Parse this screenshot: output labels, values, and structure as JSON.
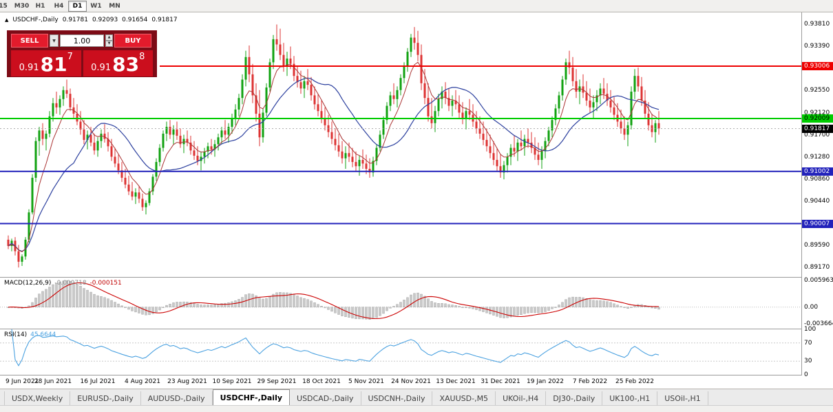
{
  "toolbar": {
    "timeframes": [
      {
        "label": "15",
        "active": false
      },
      {
        "label": "M30",
        "active": false
      },
      {
        "label": "H1",
        "active": false
      },
      {
        "label": "H4",
        "active": false
      },
      {
        "label": "D1",
        "active": true
      },
      {
        "label": "W1",
        "active": false
      },
      {
        "label": "MN",
        "active": false
      }
    ]
  },
  "chart": {
    "symbol_header": {
      "symbol": "USDCHF-,Daily",
      "open": "0.91781",
      "high": "0.92093",
      "low": "0.91654",
      "close": "0.91817"
    },
    "price_axis": {
      "plain": [
        "0.93810",
        "0.93390",
        "0.92550",
        "0.92120",
        "0.91700",
        "0.91280",
        "0.90860",
        "0.90440",
        "0.89590",
        "0.89170"
      ],
      "tags": [
        {
          "label": "0.93006",
          "bg": "#ee0000",
          "fg": "#ffffff"
        },
        {
          "label": "0.92009",
          "bg": "#00cc00",
          "fg": "#000000"
        },
        {
          "label": "0.91817",
          "bg": "#000000",
          "fg": "#ffffff"
        },
        {
          "label": "0.91002",
          "bg": "#2222bb",
          "fg": "#ffffff"
        },
        {
          "label": "0.90007",
          "bg": "#2222bb",
          "fg": "#ffffff"
        }
      ]
    },
    "hlines": [
      {
        "price": 0.93006,
        "color": "#ee0000",
        "width": 2,
        "x_start": 232
      },
      {
        "price": 0.92009,
        "color": "#00cc00",
        "width": 2,
        "x_start": 0
      },
      {
        "price": 0.91002,
        "color": "#2222bb",
        "width": 2,
        "x_start": 0
      },
      {
        "price": 0.90007,
        "color": "#2222bb",
        "width": 2,
        "x_start": 0
      },
      {
        "price": 0.91817,
        "color": "#aaaaaa",
        "width": 1,
        "x_start": 0,
        "dash": "2,3"
      }
    ]
  },
  "trade": {
    "sell_label": "SELL",
    "buy_label": "BUY",
    "volume": "1.00",
    "bid": {
      "small": "0.91",
      "big": "81",
      "sup": "7"
    },
    "ask": {
      "small": "0.91",
      "big": "83",
      "sup": "8"
    }
  },
  "indicators": {
    "macd": {
      "label": "MACD(12,26,9)",
      "value_main": "-0.000718",
      "value_signal": "-0.000151",
      "axis": [
        "0.005963",
        "0.00",
        "-0.003664"
      ],
      "params": {
        "fast": 12,
        "slow": 26,
        "signal": 9
      }
    },
    "rsi": {
      "label": "RSI(14)",
      "value": "45.6644",
      "axis": [
        "100",
        "70",
        "30",
        "0"
      ],
      "levels": [
        70,
        30
      ],
      "params": {
        "period": 14
      }
    }
  },
  "date_axis": {
    "labels": [
      "9 Jun 2021",
      "28 Jun 2021",
      "16 Jul 2021",
      "4 Aug 2021",
      "23 Aug 2021",
      "10 Sep 2021",
      "29 Sep 2021",
      "18 Oct 2021",
      "5 Nov 2021",
      "24 Nov 2021",
      "13 Dec 2021",
      "31 Dec 2021",
      "19 Jan 2022",
      "7 Feb 2022",
      "25 Feb 2022"
    ],
    "step_bars": 13
  },
  "tabs": [
    {
      "label": "USDX,Weekly",
      "active": false
    },
    {
      "label": "EURUSD-,Daily",
      "active": false
    },
    {
      "label": "AUDUSD-,Daily",
      "active": false
    },
    {
      "label": "USDCHF-,Daily",
      "active": true
    },
    {
      "label": "USDCAD-,Daily",
      "active": false
    },
    {
      "label": "USDCNH-,Daily",
      "active": false
    },
    {
      "label": "XAUUSD-,M5",
      "active": false
    },
    {
      "label": "UKOil-,H4",
      "active": false
    },
    {
      "label": "DJ30-,Daily",
      "active": false
    },
    {
      "label": "UK100-,H1",
      "active": false
    },
    {
      "label": "USOil-,H1",
      "active": false
    }
  ],
  "chart_data": {
    "type": "candlestick",
    "symbol": "USDCHF-",
    "timeframe": "Daily",
    "ylim": [
      0.8899,
      0.9403
    ],
    "macd_display_max": 0.005963,
    "colors": {
      "up": "#11a211",
      "down": "#dd3333",
      "ma_fast": "#aa3333",
      "ma_slow": "#2b3f9e",
      "macd_hist": "#c9c9c9",
      "macd_hist_edge": "#9b9b9b",
      "macd_signal": "#cc0000",
      "rsi": "#4aa1e0"
    },
    "candles": [
      [
        0.897,
        0.8978,
        0.8952,
        0.8958
      ],
      [
        0.8958,
        0.8972,
        0.8948,
        0.8968
      ],
      [
        0.8968,
        0.8975,
        0.894,
        0.8948
      ],
      [
        0.8948,
        0.896,
        0.8917,
        0.8928
      ],
      [
        0.8928,
        0.8942,
        0.892,
        0.8938
      ],
      [
        0.8938,
        0.8975,
        0.8932,
        0.897
      ],
      [
        0.897,
        0.9028,
        0.8965,
        0.9022
      ],
      [
        0.9022,
        0.9095,
        0.9018,
        0.9088
      ],
      [
        0.9088,
        0.9165,
        0.908,
        0.9158
      ],
      [
        0.9158,
        0.9185,
        0.913,
        0.9178
      ],
      [
        0.9178,
        0.9192,
        0.915,
        0.9162
      ],
      [
        0.9162,
        0.9178,
        0.914,
        0.9172
      ],
      [
        0.9172,
        0.9215,
        0.9165,
        0.9205
      ],
      [
        0.9205,
        0.924,
        0.9195,
        0.923
      ],
      [
        0.923,
        0.9252,
        0.921,
        0.9222
      ],
      [
        0.9222,
        0.9245,
        0.9208,
        0.9238
      ],
      [
        0.9238,
        0.9262,
        0.9225,
        0.9255
      ],
      [
        0.9255,
        0.9275,
        0.924,
        0.9248
      ],
      [
        0.9248,
        0.9258,
        0.9215,
        0.9222
      ],
      [
        0.9222,
        0.924,
        0.92,
        0.921
      ],
      [
        0.921,
        0.9228,
        0.9188,
        0.9195
      ],
      [
        0.9195,
        0.9215,
        0.917,
        0.918
      ],
      [
        0.918,
        0.9198,
        0.9152,
        0.916
      ],
      [
        0.916,
        0.9178,
        0.9142,
        0.917
      ],
      [
        0.917,
        0.9185,
        0.9148,
        0.9155
      ],
      [
        0.9155,
        0.9172,
        0.9132,
        0.914
      ],
      [
        0.914,
        0.9165,
        0.9128,
        0.9158
      ],
      [
        0.9158,
        0.918,
        0.9145,
        0.9172
      ],
      [
        0.9172,
        0.919,
        0.9155,
        0.9162
      ],
      [
        0.9162,
        0.9175,
        0.9138,
        0.9148
      ],
      [
        0.9148,
        0.9162,
        0.912,
        0.9128
      ],
      [
        0.9128,
        0.9145,
        0.9108,
        0.9115
      ],
      [
        0.9115,
        0.9132,
        0.9095,
        0.9102
      ],
      [
        0.9102,
        0.9118,
        0.908,
        0.9088
      ],
      [
        0.9088,
        0.9105,
        0.9068,
        0.9075
      ],
      [
        0.9075,
        0.9092,
        0.9055,
        0.9062
      ],
      [
        0.9062,
        0.908,
        0.9045,
        0.9052
      ],
      [
        0.9052,
        0.9068,
        0.9038,
        0.906
      ],
      [
        0.906,
        0.9072,
        0.904,
        0.9048
      ],
      [
        0.9048,
        0.9058,
        0.9025,
        0.9032
      ],
      [
        0.9032,
        0.9045,
        0.9018,
        0.904
      ],
      [
        0.904,
        0.9068,
        0.9035,
        0.9062
      ],
      [
        0.9062,
        0.9095,
        0.9055,
        0.909
      ],
      [
        0.909,
        0.9125,
        0.9082,
        0.9118
      ],
      [
        0.9118,
        0.9152,
        0.911,
        0.9145
      ],
      [
        0.9145,
        0.9178,
        0.9138,
        0.9172
      ],
      [
        0.9172,
        0.9195,
        0.9158,
        0.9185
      ],
      [
        0.9185,
        0.9198,
        0.9162,
        0.917
      ],
      [
        0.917,
        0.9188,
        0.9152,
        0.918
      ],
      [
        0.918,
        0.9195,
        0.916,
        0.9168
      ],
      [
        0.9168,
        0.9182,
        0.9145,
        0.9152
      ],
      [
        0.9152,
        0.917,
        0.9135,
        0.9162
      ],
      [
        0.9162,
        0.9178,
        0.9148,
        0.9155
      ],
      [
        0.9155,
        0.9168,
        0.9132,
        0.914
      ],
      [
        0.914,
        0.9158,
        0.9122,
        0.913
      ],
      [
        0.913,
        0.9148,
        0.9112,
        0.912
      ],
      [
        0.912,
        0.9138,
        0.9102,
        0.9128
      ],
      [
        0.9128,
        0.9145,
        0.9115,
        0.9138
      ],
      [
        0.9138,
        0.9155,
        0.9125,
        0.9148
      ],
      [
        0.9148,
        0.9162,
        0.9132,
        0.9142
      ],
      [
        0.9142,
        0.916,
        0.9128,
        0.9152
      ],
      [
        0.9152,
        0.9172,
        0.914,
        0.9165
      ],
      [
        0.9165,
        0.9185,
        0.9152,
        0.9178
      ],
      [
        0.9178,
        0.9198,
        0.9162,
        0.917
      ],
      [
        0.917,
        0.9192,
        0.9155,
        0.9185
      ],
      [
        0.9185,
        0.921,
        0.9172,
        0.9202
      ],
      [
        0.9202,
        0.9228,
        0.9188,
        0.9218
      ],
      [
        0.9218,
        0.9248,
        0.9205,
        0.924
      ],
      [
        0.924,
        0.9285,
        0.9228,
        0.9275
      ],
      [
        0.9275,
        0.933,
        0.9262,
        0.9318
      ],
      [
        0.9318,
        0.934,
        0.927,
        0.9285
      ],
      [
        0.9285,
        0.9305,
        0.923,
        0.9245
      ],
      [
        0.9245,
        0.9268,
        0.9195,
        0.921
      ],
      [
        0.921,
        0.9255,
        0.9148,
        0.9165
      ],
      [
        0.9165,
        0.922,
        0.9155,
        0.9212
      ],
      [
        0.9212,
        0.9268,
        0.9205,
        0.926
      ],
      [
        0.926,
        0.9315,
        0.9252,
        0.9308
      ],
      [
        0.9308,
        0.936,
        0.9295,
        0.9352
      ],
      [
        0.9352,
        0.938,
        0.933,
        0.9342
      ],
      [
        0.9342,
        0.9372,
        0.9312,
        0.9322
      ],
      [
        0.9322,
        0.9345,
        0.929,
        0.93
      ],
      [
        0.93,
        0.9328,
        0.9282,
        0.9315
      ],
      [
        0.9315,
        0.9338,
        0.9295,
        0.9305
      ],
      [
        0.9305,
        0.932,
        0.9272,
        0.9282
      ],
      [
        0.9282,
        0.9302,
        0.926,
        0.927
      ],
      [
        0.927,
        0.9292,
        0.9248,
        0.9258
      ],
      [
        0.9258,
        0.9282,
        0.924,
        0.9272
      ],
      [
        0.9272,
        0.9295,
        0.9255,
        0.9265
      ],
      [
        0.9265,
        0.928,
        0.9235,
        0.9245
      ],
      [
        0.9245,
        0.9262,
        0.9218,
        0.9228
      ],
      [
        0.9228,
        0.9248,
        0.9205,
        0.9215
      ],
      [
        0.9215,
        0.9235,
        0.9192,
        0.9202
      ],
      [
        0.9202,
        0.9222,
        0.9178,
        0.9188
      ],
      [
        0.9188,
        0.9208,
        0.9165,
        0.9175
      ],
      [
        0.9175,
        0.9195,
        0.9152,
        0.9162
      ],
      [
        0.9162,
        0.9182,
        0.914,
        0.915
      ],
      [
        0.915,
        0.9172,
        0.9128,
        0.9138
      ],
      [
        0.9138,
        0.9158,
        0.9115,
        0.9125
      ],
      [
        0.9125,
        0.9148,
        0.9105,
        0.9135
      ],
      [
        0.9135,
        0.9155,
        0.9118,
        0.9128
      ],
      [
        0.9128,
        0.9145,
        0.9108,
        0.9118
      ],
      [
        0.9118,
        0.9138,
        0.91,
        0.911
      ],
      [
        0.911,
        0.913,
        0.9092,
        0.9122
      ],
      [
        0.9122,
        0.9142,
        0.9105,
        0.9115
      ],
      [
        0.9115,
        0.9132,
        0.9095,
        0.9105
      ],
      [
        0.9105,
        0.9125,
        0.9088,
        0.9098
      ],
      [
        0.9098,
        0.9128,
        0.909,
        0.912
      ],
      [
        0.912,
        0.9152,
        0.9112,
        0.9145
      ],
      [
        0.9145,
        0.9178,
        0.9138,
        0.917
      ],
      [
        0.917,
        0.9205,
        0.9162,
        0.9198
      ],
      [
        0.9198,
        0.9232,
        0.919,
        0.9225
      ],
      [
        0.9225,
        0.9252,
        0.9215,
        0.9245
      ],
      [
        0.9245,
        0.9268,
        0.9228,
        0.9238
      ],
      [
        0.9238,
        0.9262,
        0.9222,
        0.9255
      ],
      [
        0.9255,
        0.9285,
        0.9245,
        0.9278
      ],
      [
        0.9278,
        0.9308,
        0.9268,
        0.93
      ],
      [
        0.93,
        0.9335,
        0.929,
        0.9328
      ],
      [
        0.9328,
        0.9362,
        0.9318,
        0.9355
      ],
      [
        0.9355,
        0.9375,
        0.9332,
        0.9345
      ],
      [
        0.9345,
        0.9368,
        0.931,
        0.9322
      ],
      [
        0.9322,
        0.9342,
        0.9255,
        0.9268
      ],
      [
        0.9268,
        0.9295,
        0.9228,
        0.924
      ],
      [
        0.924,
        0.9268,
        0.9195,
        0.9205
      ],
      [
        0.9205,
        0.924,
        0.9182,
        0.9192
      ],
      [
        0.9192,
        0.9225,
        0.9175,
        0.9215
      ],
      [
        0.9215,
        0.9248,
        0.9205,
        0.9238
      ],
      [
        0.9238,
        0.9262,
        0.922,
        0.9252
      ],
      [
        0.9252,
        0.927,
        0.9228,
        0.924
      ],
      [
        0.924,
        0.9258,
        0.9215,
        0.9225
      ],
      [
        0.9225,
        0.9245,
        0.9205,
        0.9235
      ],
      [
        0.9235,
        0.9255,
        0.9218,
        0.9228
      ],
      [
        0.9228,
        0.9245,
        0.9202,
        0.9212
      ],
      [
        0.9212,
        0.9232,
        0.919,
        0.92
      ],
      [
        0.92,
        0.9222,
        0.918,
        0.9215
      ],
      [
        0.9215,
        0.9238,
        0.9198,
        0.9208
      ],
      [
        0.9208,
        0.9228,
        0.9185,
        0.9195
      ],
      [
        0.9195,
        0.9215,
        0.9172,
        0.9182
      ],
      [
        0.9182,
        0.9205,
        0.9162,
        0.9172
      ],
      [
        0.9172,
        0.9195,
        0.915,
        0.916
      ],
      [
        0.916,
        0.9182,
        0.9138,
        0.9148
      ],
      [
        0.9148,
        0.917,
        0.9125,
        0.9135
      ],
      [
        0.9135,
        0.9158,
        0.9112,
        0.9122
      ],
      [
        0.9122,
        0.9145,
        0.91,
        0.911
      ],
      [
        0.911,
        0.9132,
        0.9088,
        0.9098
      ],
      [
        0.9098,
        0.912,
        0.9085,
        0.9112
      ],
      [
        0.9112,
        0.9135,
        0.9098,
        0.9128
      ],
      [
        0.9128,
        0.9152,
        0.9112,
        0.9145
      ],
      [
        0.9145,
        0.9168,
        0.9128,
        0.9138
      ],
      [
        0.9138,
        0.9162,
        0.912,
        0.9155
      ],
      [
        0.9155,
        0.9178,
        0.914,
        0.9148
      ],
      [
        0.9148,
        0.917,
        0.913,
        0.9162
      ],
      [
        0.9162,
        0.9182,
        0.9145,
        0.9155
      ],
      [
        0.9155,
        0.9175,
        0.9135,
        0.9145
      ],
      [
        0.9145,
        0.9165,
        0.9122,
        0.9132
      ],
      [
        0.9132,
        0.9155,
        0.9112,
        0.9122
      ],
      [
        0.9122,
        0.9148,
        0.9105,
        0.914
      ],
      [
        0.914,
        0.9165,
        0.9125,
        0.9158
      ],
      [
        0.9158,
        0.9185,
        0.9148,
        0.9178
      ],
      [
        0.9178,
        0.9205,
        0.9165,
        0.9198
      ],
      [
        0.9198,
        0.9228,
        0.9188,
        0.922
      ],
      [
        0.922,
        0.9252,
        0.921,
        0.9245
      ],
      [
        0.9245,
        0.9282,
        0.9235,
        0.9275
      ],
      [
        0.9275,
        0.9315,
        0.9265,
        0.9308
      ],
      [
        0.9308,
        0.933,
        0.9285,
        0.9298
      ],
      [
        0.9298,
        0.9318,
        0.9262,
        0.9272
      ],
      [
        0.9272,
        0.9295,
        0.924,
        0.9252
      ],
      [
        0.9252,
        0.9275,
        0.9228,
        0.9262
      ],
      [
        0.9262,
        0.9285,
        0.924,
        0.925
      ],
      [
        0.925,
        0.9272,
        0.9225,
        0.9235
      ],
      [
        0.9235,
        0.9258,
        0.9212,
        0.9222
      ],
      [
        0.9222,
        0.9245,
        0.92,
        0.9232
      ],
      [
        0.9232,
        0.9255,
        0.9215,
        0.9245
      ],
      [
        0.9245,
        0.9268,
        0.9228,
        0.9258
      ],
      [
        0.9258,
        0.9278,
        0.9238,
        0.9248
      ],
      [
        0.9248,
        0.9268,
        0.9225,
        0.9235
      ],
      [
        0.9235,
        0.9255,
        0.9212,
        0.9222
      ],
      [
        0.9222,
        0.9242,
        0.9198,
        0.9208
      ],
      [
        0.9208,
        0.923,
        0.9185,
        0.9195
      ],
      [
        0.9195,
        0.9218,
        0.9172,
        0.9182
      ],
      [
        0.9182,
        0.9205,
        0.916,
        0.917
      ],
      [
        0.917,
        0.9195,
        0.9148,
        0.9188
      ],
      [
        0.9188,
        0.9262,
        0.918,
        0.9252
      ],
      [
        0.9252,
        0.9295,
        0.9238,
        0.9282
      ],
      [
        0.9282,
        0.9298,
        0.9252,
        0.9262
      ],
      [
        0.9262,
        0.928,
        0.9225,
        0.9235
      ],
      [
        0.9235,
        0.9255,
        0.92,
        0.921
      ],
      [
        0.921,
        0.9232,
        0.9178,
        0.9188
      ],
      [
        0.9188,
        0.921,
        0.9165,
        0.9175
      ],
      [
        0.9175,
        0.9198,
        0.9155,
        0.9192
      ],
      [
        0.9192,
        0.9215,
        0.917,
        0.9182
      ]
    ]
  }
}
